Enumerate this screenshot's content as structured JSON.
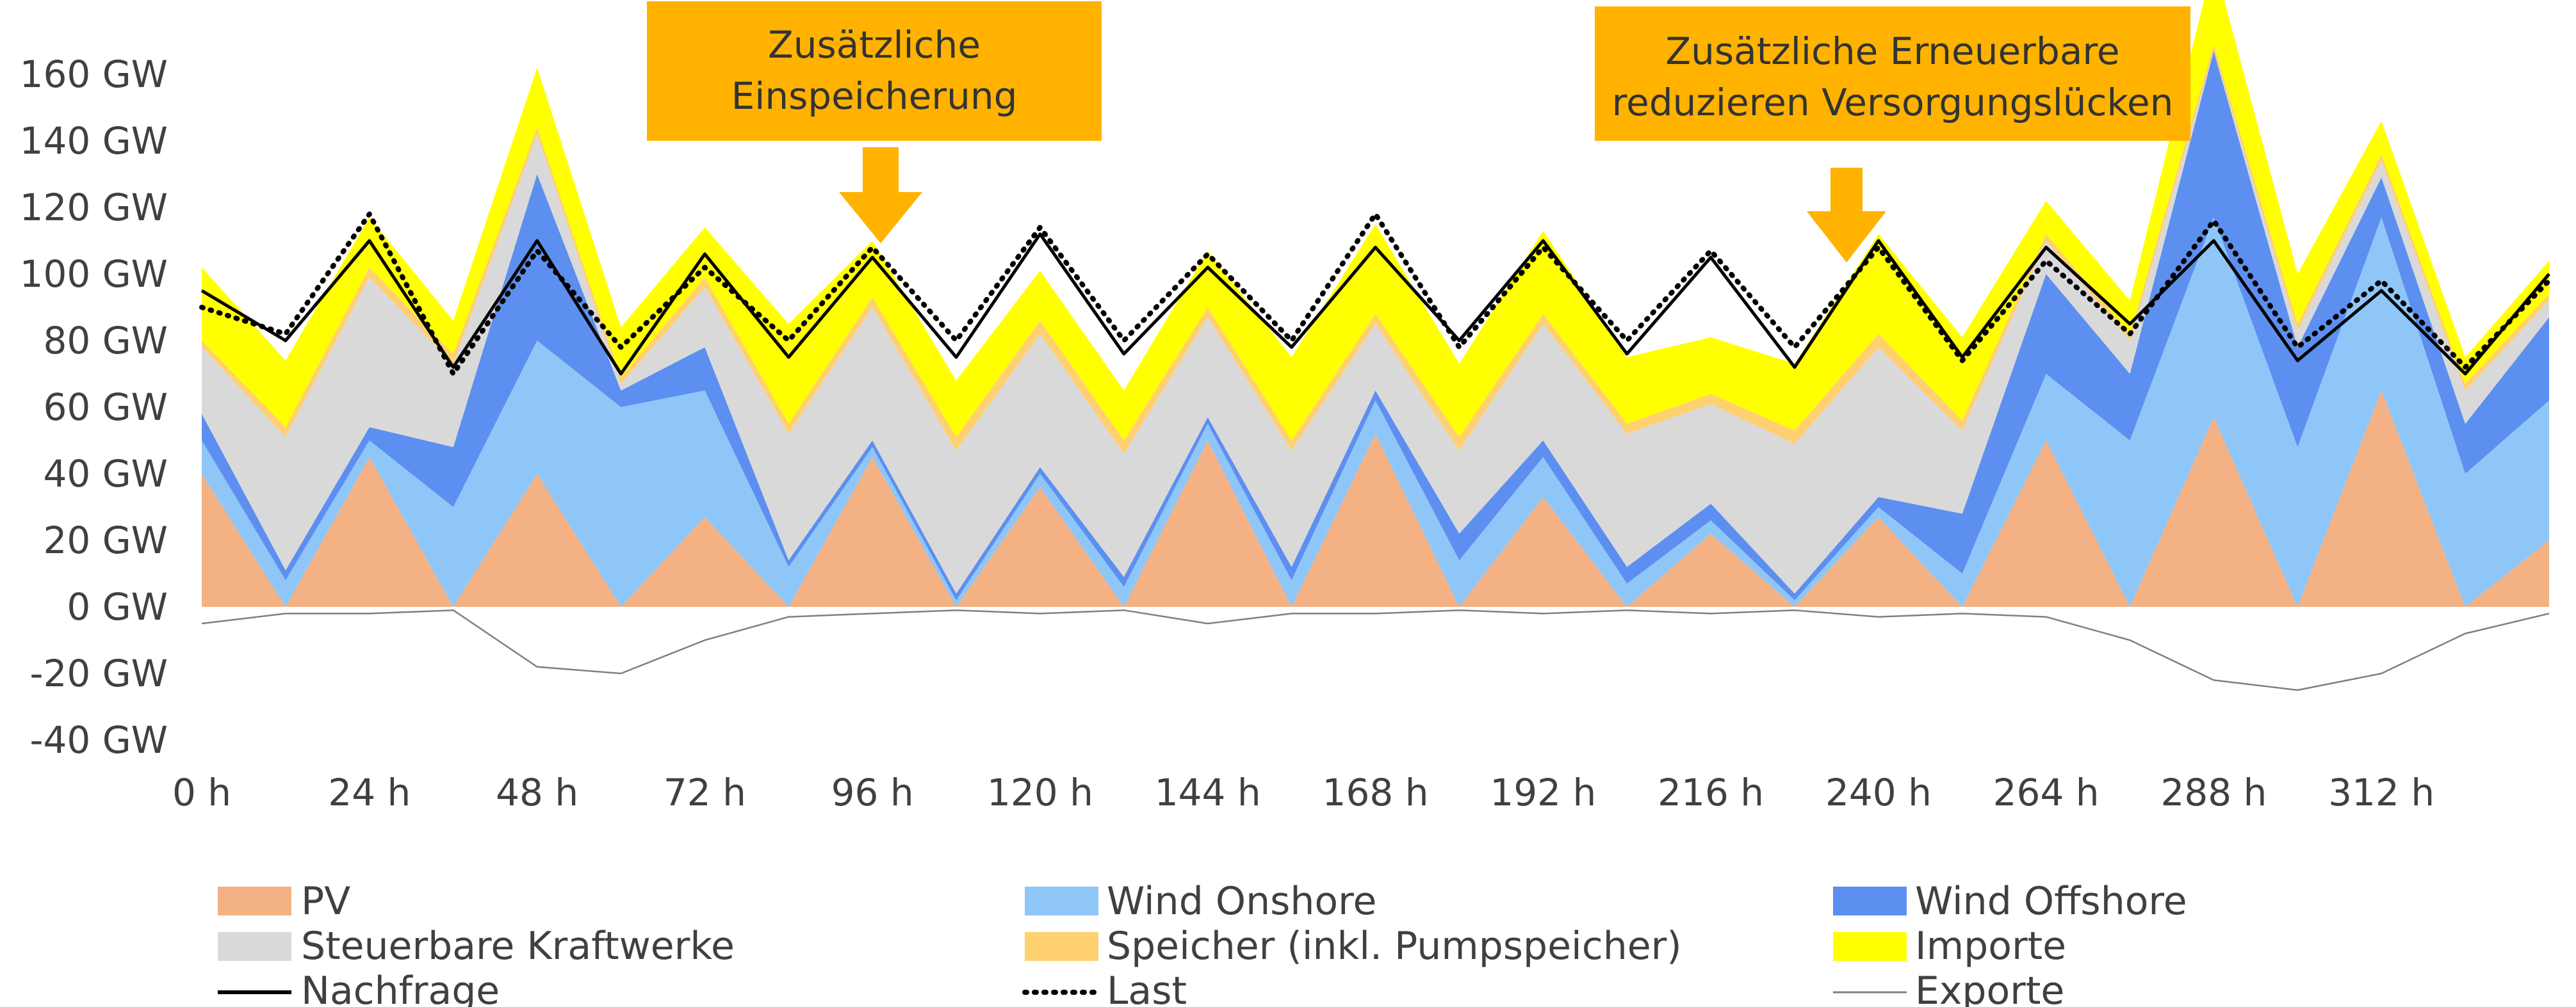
{
  "chart_data": {
    "type": "area",
    "title": "",
    "xlabel": "",
    "ylabel": "",
    "unit": "GW",
    "x_ticks": [
      "0 h",
      "24 h",
      "48 h",
      "72 h",
      "96 h",
      "120 h",
      "144 h",
      "168 h",
      "192 h",
      "216 h",
      "240 h",
      "264 h",
      "288 h",
      "312 h"
    ],
    "y_ticks": [
      "160 GW",
      "140 GW",
      "120 GW",
      "100 GW",
      "80 GW",
      "60 GW",
      "40 GW",
      "20 GW",
      "0 GW",
      "-20 GW",
      "-40 GW"
    ],
    "xlim": [
      0,
      336
    ],
    "ylim": [
      -40,
      160
    ],
    "grid": false,
    "legend_position": "bottom",
    "x": [
      0,
      12,
      24,
      36,
      48,
      60,
      72,
      84,
      96,
      108,
      120,
      132,
      144,
      156,
      168,
      180,
      192,
      204,
      216,
      228,
      240,
      252,
      264,
      276,
      288,
      300,
      312,
      324,
      336
    ],
    "series": [
      {
        "name": "PV",
        "color": "#F4B183",
        "kind": "area",
        "values": [
          40,
          0,
          45,
          0,
          40,
          0,
          27,
          0,
          45,
          0,
          36,
          0,
          50,
          0,
          52,
          0,
          33,
          0,
          22,
          0,
          27,
          0,
          50,
          0,
          57,
          0,
          65,
          0,
          20
        ]
      },
      {
        "name": "Wind Onshore",
        "color": "#8FC6F8",
        "kind": "area",
        "values": [
          10,
          8,
          5,
          30,
          40,
          60,
          38,
          12,
          3,
          2,
          4,
          6,
          5,
          8,
          10,
          14,
          12,
          7,
          4,
          2,
          3,
          10,
          20,
          50,
          60,
          48,
          52,
          40,
          42
        ]
      },
      {
        "name": "Wind Offshore",
        "color": "#5C8FF0",
        "kind": "area",
        "values": [
          8,
          3,
          4,
          18,
          50,
          5,
          13,
          2,
          2,
          2,
          2,
          3,
          2,
          4,
          3,
          8,
          5,
          5,
          5,
          2,
          3,
          18,
          30,
          20,
          50,
          30,
          12,
          15,
          25
        ]
      },
      {
        "name": "Steuerbare Kraftwerke",
        "color": "#D9D9D9",
        "kind": "area",
        "values": [
          20,
          40,
          45,
          25,
          12,
          2,
          18,
          38,
          40,
          43,
          40,
          37,
          30,
          35,
          20,
          25,
          35,
          40,
          30,
          45,
          45,
          25,
          10,
          10,
          0,
          5,
          5,
          10,
          5
        ]
      },
      {
        "name": "Speicher (inkl. Pumpspeicher)",
        "color": "#FFD070",
        "kind": "area",
        "values": [
          2,
          3,
          3,
          3,
          2,
          2,
          3,
          3,
          3,
          4,
          4,
          4,
          3,
          3,
          3,
          4,
          3,
          3,
          3,
          4,
          4,
          3,
          2,
          2,
          2,
          2,
          2,
          2,
          2
        ]
      },
      {
        "name": "Importe",
        "color": "#FFFF00",
        "kind": "area",
        "values": [
          22,
          20,
          15,
          10,
          18,
          15,
          15,
          30,
          17,
          17,
          15,
          15,
          17,
          25,
          27,
          22,
          25,
          20,
          17,
          20,
          30,
          25,
          10,
          10,
          25,
          15,
          10,
          8,
          10
        ]
      },
      {
        "name": "Nachfrage",
        "color": "#000000",
        "kind": "line",
        "values": [
          95,
          80,
          110,
          72,
          110,
          70,
          106,
          75,
          105,
          75,
          112,
          76,
          102,
          78,
          108,
          80,
          110,
          76,
          105,
          72,
          110,
          75,
          108,
          85,
          110,
          74,
          95,
          70,
          100
        ]
      },
      {
        "name": "Last",
        "color": "#000000",
        "kind": "dotted",
        "values": [
          90,
          82,
          118,
          70,
          107,
          78,
          102,
          80,
          108,
          80,
          114,
          80,
          106,
          80,
          118,
          78,
          108,
          80,
          107,
          78,
          108,
          74,
          104,
          82,
          116,
          78,
          98,
          72,
          98
        ]
      },
      {
        "name": "Exporte",
        "color": "#808080",
        "kind": "thin",
        "values": [
          -5,
          -2,
          -2,
          -1,
          -18,
          -20,
          -10,
          -3,
          -2,
          -1,
          -2,
          -1,
          -5,
          -2,
          -2,
          -1,
          -2,
          -1,
          -2,
          -1,
          -3,
          -2,
          -3,
          -10,
          -22,
          -25,
          -20,
          -8,
          -2
        ]
      }
    ],
    "annotations": [
      {
        "lines": [
          "Zusätzliche",
          "Einspeicherung"
        ],
        "arrow_target_x": 103,
        "arrow_target_y": 105
      },
      {
        "lines": [
          "Zusätzliche Erneuerbare",
          "reduzieren Versorgungslücken"
        ],
        "arrow_target_x": 234,
        "arrow_target_y": 102
      }
    ]
  }
}
